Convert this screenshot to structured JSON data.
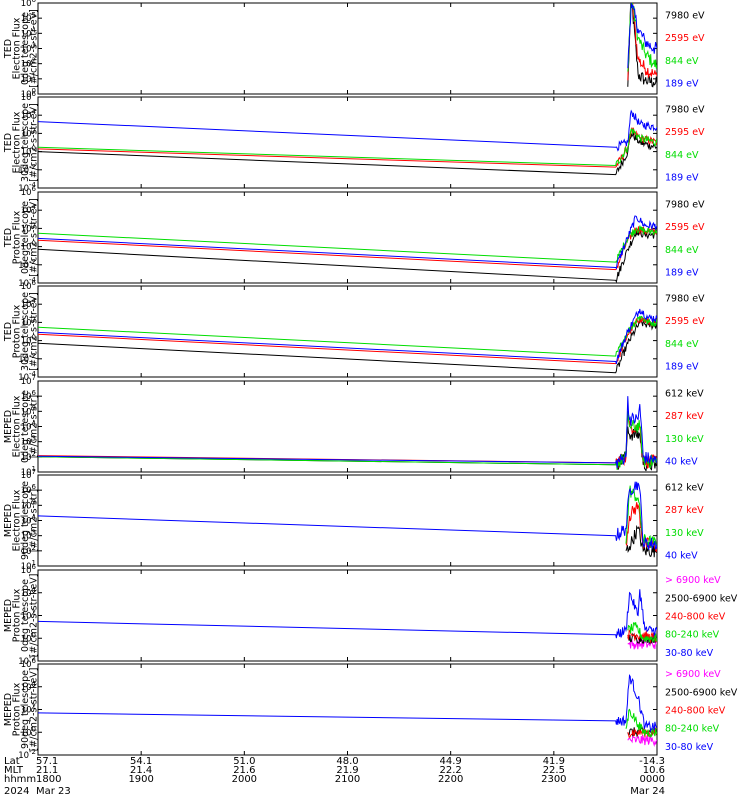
{
  "colors": {
    "black": "#000000",
    "red": "#ff0000",
    "green": "#00dd00",
    "blue": "#0000ff",
    "magenta": "#ff00ff"
  },
  "chart_data": [
    {
      "type": "line",
      "ylabel": [
        "TED",
        "Electron Flux",
        "0deg telescope",
        "[#/cm2-s-str-eV]"
      ],
      "ylim": [
        1,
        1000000
      ],
      "ylog": true,
      "yticks": [
        "10^0",
        "10^1",
        "10^2",
        "10^3",
        "10^4",
        "10^5",
        "10^6"
      ],
      "series": [
        {
          "name": "7980 eV",
          "color": "black",
          "x": [
            2343,
            2345,
            2349,
            2353,
            2358,
            2400
          ],
          "y": [
            3,
            3000000,
            20,
            8,
            6,
            5
          ],
          "noisy": true
        },
        {
          "name": "2595 eV",
          "color": "red",
          "x": [
            2343,
            2345,
            2349,
            2353,
            2358,
            2400
          ],
          "y": [
            8,
            5000000,
            200,
            50,
            20,
            15
          ],
          "noisy": true
        },
        {
          "name": "844 eV",
          "color": "green",
          "x": [
            2343,
            2345,
            2349,
            2353,
            2358,
            2400
          ],
          "y": [
            30,
            3000000,
            5000,
            500,
            100,
            80
          ],
          "noisy": true
        },
        {
          "name": "189 eV",
          "color": "blue",
          "x": [
            2343,
            2345,
            2349,
            2353,
            2358,
            2400
          ],
          "y": [
            50,
            1000000,
            20000,
            3000,
            1000,
            1000
          ],
          "noisy": true
        }
      ]
    },
    {
      "type": "line",
      "ylabel": [
        "TED",
        "Electron Flux",
        "30deg telescope",
        "[#/cm2-s-str-eV]"
      ],
      "ylim": [
        0.0001,
        1000000
      ],
      "ylog": true,
      "yticks": [
        "10^-4",
        "10^-2",
        "10^0",
        "10^2",
        "10^4",
        "10^6"
      ],
      "series": [
        {
          "name": "7980 eV",
          "color": "black",
          "x": [
            1800,
            2336,
            2343,
            2345,
            2350,
            2400
          ],
          "y": [
            1,
            0.003,
            1,
            100,
            10,
            3
          ],
          "noisy": true
        },
        {
          "name": "2595 eV",
          "color": "red",
          "x": [
            1800,
            2336,
            2343,
            2345,
            2350,
            2400
          ],
          "y": [
            2,
            0.02,
            3,
            200,
            30,
            10
          ],
          "noisy": true
        },
        {
          "name": "844 eV",
          "color": "green",
          "x": [
            1800,
            2336,
            2343,
            2345,
            2350,
            2400
          ],
          "y": [
            3,
            0.03,
            3,
            300,
            30,
            10
          ],
          "noisy": true
        },
        {
          "name": "189 eV",
          "color": "blue",
          "x": [
            1800,
            2336,
            2343,
            2345,
            2350,
            2400
          ],
          "y": [
            2000,
            3,
            10,
            30000,
            1000,
            500
          ],
          "noisy": true
        }
      ]
    },
    {
      "type": "line",
      "ylabel": [
        "TED",
        "Proton Flux",
        "0deg telescope",
        "[#/cm2-s-str-eV]"
      ],
      "ylim": [
        0.0001,
        1000000
      ],
      "ylog": true,
      "yticks": [
        "10^-4",
        "10^-2",
        "10^0",
        "10^2",
        "10^4",
        "10^6"
      ],
      "series": [
        {
          "name": "7980 eV",
          "color": "black",
          "x": [
            1800,
            2336,
            2343,
            2348,
            2353,
            2400
          ],
          "y": [
            0.5,
            0.0002,
            0.5,
            50,
            20,
            20
          ],
          "noisy": true
        },
        {
          "name": "2595 eV",
          "color": "red",
          "x": [
            1800,
            2336,
            2343,
            2348,
            2353,
            2400
          ],
          "y": [
            5,
            0.003,
            5,
            100,
            50,
            50
          ],
          "noisy": true
        },
        {
          "name": "844 eV",
          "color": "green",
          "x": [
            1800,
            2336,
            2343,
            2348,
            2353,
            2400
          ],
          "y": [
            30,
            0.02,
            10,
            100,
            50,
            50
          ],
          "noisy": true
        },
        {
          "name": "189 eV",
          "color": "blue",
          "x": [
            1800,
            2336,
            2343,
            2348,
            2353,
            2400
          ],
          "y": [
            8,
            0.005,
            10,
            2000,
            200,
            200
          ],
          "noisy": true
        }
      ]
    },
    {
      "type": "line",
      "ylabel": [
        "TED",
        "Proton Flux",
        "30deg telescope",
        "[#/cm2-s-str-eV]"
      ],
      "ylim": [
        0.0001,
        1000000
      ],
      "ylog": true,
      "yticks": [
        "10^-4",
        "10^-2",
        "10^0",
        "10^2",
        "10^4",
        "10^6"
      ],
      "series": [
        {
          "name": "7980 eV",
          "color": "black",
          "x": [
            1800,
            2336,
            2343,
            2350,
            2355,
            2400
          ],
          "y": [
            0.5,
            0.0003,
            0.5,
            100,
            50,
            50
          ],
          "noisy": true
        },
        {
          "name": "2595 eV",
          "color": "red",
          "x": [
            1800,
            2336,
            2343,
            2350,
            2355,
            2400
          ],
          "y": [
            5,
            0.003,
            5,
            300,
            100,
            100
          ],
          "noisy": true
        },
        {
          "name": "844 eV",
          "color": "green",
          "x": [
            1800,
            2336,
            2343,
            2350,
            2355,
            2400
          ],
          "y": [
            30,
            0.02,
            10,
            500,
            100,
            100
          ],
          "noisy": true
        },
        {
          "name": "189 eV",
          "color": "blue",
          "x": [
            1800,
            2336,
            2343,
            2350,
            2355,
            2400
          ],
          "y": [
            8,
            0.005,
            10,
            3000,
            300,
            300
          ],
          "noisy": true
        }
      ]
    },
    {
      "type": "line",
      "ylabel": [
        "MEPED",
        "Electron Flux",
        "0deg telescope",
        "[#/cm2-s-str]"
      ],
      "ylim": [
        10,
        10000000
      ],
      "ylog": true,
      "yticks": [
        "10^1",
        "10^2",
        "10^3",
        "10^4",
        "10^5",
        "10^6",
        "10^7"
      ],
      "series": [
        {
          "name": "612 keV",
          "color": "black",
          "x": [
            1800,
            2336,
            2342,
            2343,
            2344,
            2350,
            2352,
            2400
          ],
          "y": [
            100,
            30,
            100,
            10000,
            3000,
            3000,
            30,
            30
          ],
          "noisy": true
        },
        {
          "name": "287 keV",
          "color": "red",
          "x": [
            1800,
            2336,
            2342,
            2343,
            2344,
            2350,
            2352,
            2400
          ],
          "y": [
            120,
            40,
            100,
            100000,
            10000,
            10000,
            50,
            50
          ],
          "noisy": true
        },
        {
          "name": "130 keV",
          "color": "green",
          "x": [
            1800,
            2336,
            2342,
            2343,
            2344,
            2350,
            2352,
            2400
          ],
          "y": [
            100,
            30,
            100,
            100000,
            10000,
            10000,
            50,
            50
          ],
          "noisy": true
        },
        {
          "name": "40 keV",
          "color": "blue",
          "x": [
            1800,
            2336,
            2342,
            2343,
            2344,
            2349,
            2350,
            2352,
            2400
          ],
          "y": [
            110,
            40,
            100,
            1000000,
            30000,
            30000,
            300000,
            100,
            50
          ],
          "noisy": true
        }
      ]
    },
    {
      "type": "line",
      "ylabel": [
        "MEPED",
        "Electron Flux",
        "90deg telescope",
        "[#/cm2-s-str]"
      ],
      "ylim": [
        10,
        10000000
      ],
      "ylog": true,
      "yticks": [
        "10^1",
        "10^2",
        "10^3",
        "10^4",
        "10^5",
        "10^6",
        "10^7"
      ],
      "series": [
        {
          "name": "612 keV",
          "color": "black",
          "x": [
            2342,
            2344,
            2349,
            2352,
            2400
          ],
          "y": [
            100,
            200,
            3000,
            100,
            100
          ],
          "noisy": true
        },
        {
          "name": "287 keV",
          "color": "red",
          "x": [
            2342,
            2344,
            2349,
            2352,
            2400
          ],
          "y": [
            300,
            20000,
            100000,
            300,
            200
          ],
          "noisy": true
        },
        {
          "name": "130 keV",
          "color": "green",
          "x": [
            2342,
            2344,
            2349,
            2352,
            2400
          ],
          "y": [
            300,
            1000000,
            300000,
            500,
            300
          ],
          "noisy": true
        },
        {
          "name": "40 keV",
          "color": "blue",
          "x": [
            1800,
            2336,
            2342,
            2344,
            2349,
            2350,
            2352,
            2400
          ],
          "y": [
            20000,
            1000,
            3000,
            1000000,
            3000000,
            1000000,
            300,
            300
          ],
          "noisy": true
        }
      ]
    },
    {
      "type": "line",
      "ylabel": [
        "MEPED",
        "Proton Flux",
        "0deg telescope",
        "[#/cm2-s-str-keV]"
      ],
      "ylim": [
        0.01,
        1000000
      ],
      "ylog": true,
      "yticks": [
        "10^-2",
        "10^0",
        "10^2",
        "10^4",
        "10^6"
      ],
      "series": [
        {
          "name": "> 6900 keV",
          "color": "magenta",
          "x": [
            2343,
            2348,
            2400
          ],
          "y": [
            0.3,
            0.3,
            0.3
          ],
          "noisy": true
        },
        {
          "name": "2500-6900 keV",
          "color": "black",
          "x": [
            2343,
            2348,
            2400
          ],
          "y": [
            1,
            1,
            1
          ],
          "noisy": true
        },
        {
          "name": "240-800 keV",
          "color": "red",
          "x": [
            2343,
            2348,
            2400
          ],
          "y": [
            2,
            2,
            1
          ],
          "noisy": true
        },
        {
          "name": "80-240 keV",
          "color": "green",
          "x": [
            2343,
            2348,
            2352,
            2400
          ],
          "y": [
            5,
            10,
            1,
            1
          ],
          "noisy": true
        },
        {
          "name": "30-80 keV",
          "color": "blue",
          "x": [
            1800,
            2336,
            2342,
            2344,
            2349,
            2350,
            2353,
            2400
          ],
          "y": [
            30,
            2,
            5,
            10000,
            100,
            20000,
            5,
            5
          ],
          "noisy": true
        }
      ]
    },
    {
      "type": "line",
      "ylabel": [
        "MEPED",
        "Proton Flux",
        "90deg telescope",
        "[#/cm2-s-str-keV]"
      ],
      "ylim": [
        0.01,
        1000000
      ],
      "ylog": true,
      "yticks": [
        "10^-2",
        "10^0",
        "10^2",
        "10^4",
        "10^6"
      ],
      "series": [
        {
          "name": "> 6900 keV",
          "color": "magenta",
          "x": [
            2343,
            2348,
            2400
          ],
          "y": [
            0.2,
            0.2,
            0.2
          ],
          "noisy": true
        },
        {
          "name": "2500-6900 keV",
          "color": "black",
          "x": [
            2343,
            2348,
            2400
          ],
          "y": [
            1,
            1,
            1
          ],
          "noisy": true
        },
        {
          "name": "240-800 keV",
          "color": "red",
          "x": [
            2343,
            2348,
            2400
          ],
          "y": [
            1,
            1,
            1
          ],
          "noisy": true
        },
        {
          "name": "80-240 keV",
          "color": "green",
          "x": [
            2342,
            2344,
            2349,
            2352,
            2400
          ],
          "y": [
            2,
            100,
            5,
            1,
            1
          ],
          "noisy": true
        },
        {
          "name": "30-80 keV",
          "color": "blue",
          "x": [
            1800,
            2336,
            2342,
            2344,
            2349,
            2353,
            2400
          ],
          "y": [
            50,
            10,
            10,
            100000,
            1000,
            3,
            3
          ],
          "noisy": true
        }
      ]
    }
  ],
  "x_axis": {
    "xlim": [
      1800,
      2400
    ],
    "rows": [
      {
        "label": "Lat",
        "values": [
          "57.1",
          "54.1",
          "51.0",
          "48.0",
          "44.9",
          "41.9",
          "-14.3"
        ]
      },
      {
        "label": "MLT",
        "values": [
          "21.1",
          "21.4",
          "21.6",
          "21.9",
          "22.2",
          "22.5",
          "10.6"
        ]
      },
      {
        "label": "hhmm",
        "values": [
          "1800",
          "1900",
          "2000",
          "2100",
          "2200",
          "2300",
          "0000"
        ]
      }
    ],
    "tick_times": [
      1800,
      1900,
      2000,
      2100,
      2200,
      2300,
      2400
    ],
    "year": "2024",
    "start_date": "Mar 23",
    "end_date": "Mar 24"
  }
}
